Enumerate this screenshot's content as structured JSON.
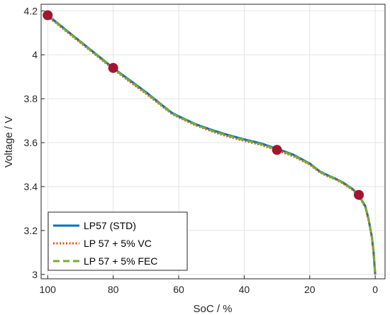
{
  "chart_data": {
    "type": "line",
    "title": "",
    "xlabel": "SoC / %",
    "ylabel": "Voltage / V",
    "xlim": [
      102,
      -3
    ],
    "ylim": [
      2.98,
      4.23
    ],
    "x_reversed": true,
    "x_ticks": [
      100,
      80,
      60,
      40,
      20,
      0
    ],
    "y_ticks": [
      3,
      3.2,
      3.4,
      3.6,
      3.8,
      4,
      4.2
    ],
    "x_tick_labels": [
      "100",
      "80",
      "60",
      "40",
      "20",
      "0"
    ],
    "y_tick_labels": [
      "3",
      "3.2",
      "3.4",
      "3.6",
      "3.8",
      "4",
      "4.2"
    ],
    "grid": true,
    "legend_position": "bottom-left",
    "series": [
      {
        "name": "LP57 (STD)",
        "color": "#0072BD",
        "style": "solid",
        "x": [
          100,
          95,
          90,
          85,
          80,
          75,
          70,
          65,
          62,
          60,
          55,
          50,
          45,
          40,
          35,
          30,
          25,
          20,
          17,
          15,
          12,
          10,
          7,
          5,
          3,
          2,
          1,
          0.5,
          0
        ],
        "y": [
          4.18,
          4.12,
          4.06,
          4.0,
          3.94,
          3.885,
          3.83,
          3.77,
          3.735,
          3.72,
          3.685,
          3.658,
          3.635,
          3.615,
          3.597,
          3.572,
          3.545,
          3.505,
          3.47,
          3.455,
          3.435,
          3.42,
          3.39,
          3.362,
          3.31,
          3.25,
          3.17,
          3.1,
          3.0
        ]
      },
      {
        "name": "LP 57 + 5% VC",
        "color": "#D95319",
        "style": "dotted",
        "x": [
          100,
          95,
          90,
          85,
          80,
          75,
          70,
          65,
          62,
          60,
          55,
          50,
          45,
          40,
          35,
          30,
          25,
          20,
          17,
          15,
          12,
          10,
          7,
          5,
          3,
          2,
          1,
          0.5,
          0
        ],
        "y": [
          4.175,
          4.115,
          4.055,
          3.995,
          3.935,
          3.878,
          3.823,
          3.765,
          3.73,
          3.715,
          3.68,
          3.652,
          3.628,
          3.608,
          3.59,
          3.565,
          3.538,
          3.5,
          3.466,
          3.45,
          3.432,
          3.416,
          3.386,
          3.358,
          3.305,
          3.245,
          3.165,
          3.095,
          3.0
        ]
      },
      {
        "name": "LP 57 + 5% FEC",
        "color": "#77AC30",
        "style": "dashed",
        "x": [
          100,
          95,
          90,
          85,
          80,
          75,
          70,
          65,
          62,
          60,
          55,
          50,
          45,
          40,
          35,
          30,
          25,
          20,
          17,
          15,
          12,
          10,
          7,
          5,
          3,
          2,
          1,
          0.5,
          0
        ],
        "y": [
          4.178,
          4.118,
          4.058,
          3.998,
          3.938,
          3.882,
          3.827,
          3.768,
          3.733,
          3.718,
          3.683,
          3.655,
          3.632,
          3.612,
          3.594,
          3.569,
          3.542,
          3.503,
          3.468,
          3.453,
          3.434,
          3.418,
          3.388,
          3.36,
          3.308,
          3.248,
          3.168,
          3.098,
          3.0
        ]
      }
    ],
    "markers": {
      "color": "#A2142F",
      "points": [
        {
          "x": 100,
          "y": 4.18
        },
        {
          "x": 80,
          "y": 3.94
        },
        {
          "x": 30,
          "y": 3.567
        },
        {
          "x": 5,
          "y": 3.362
        }
      ]
    }
  }
}
